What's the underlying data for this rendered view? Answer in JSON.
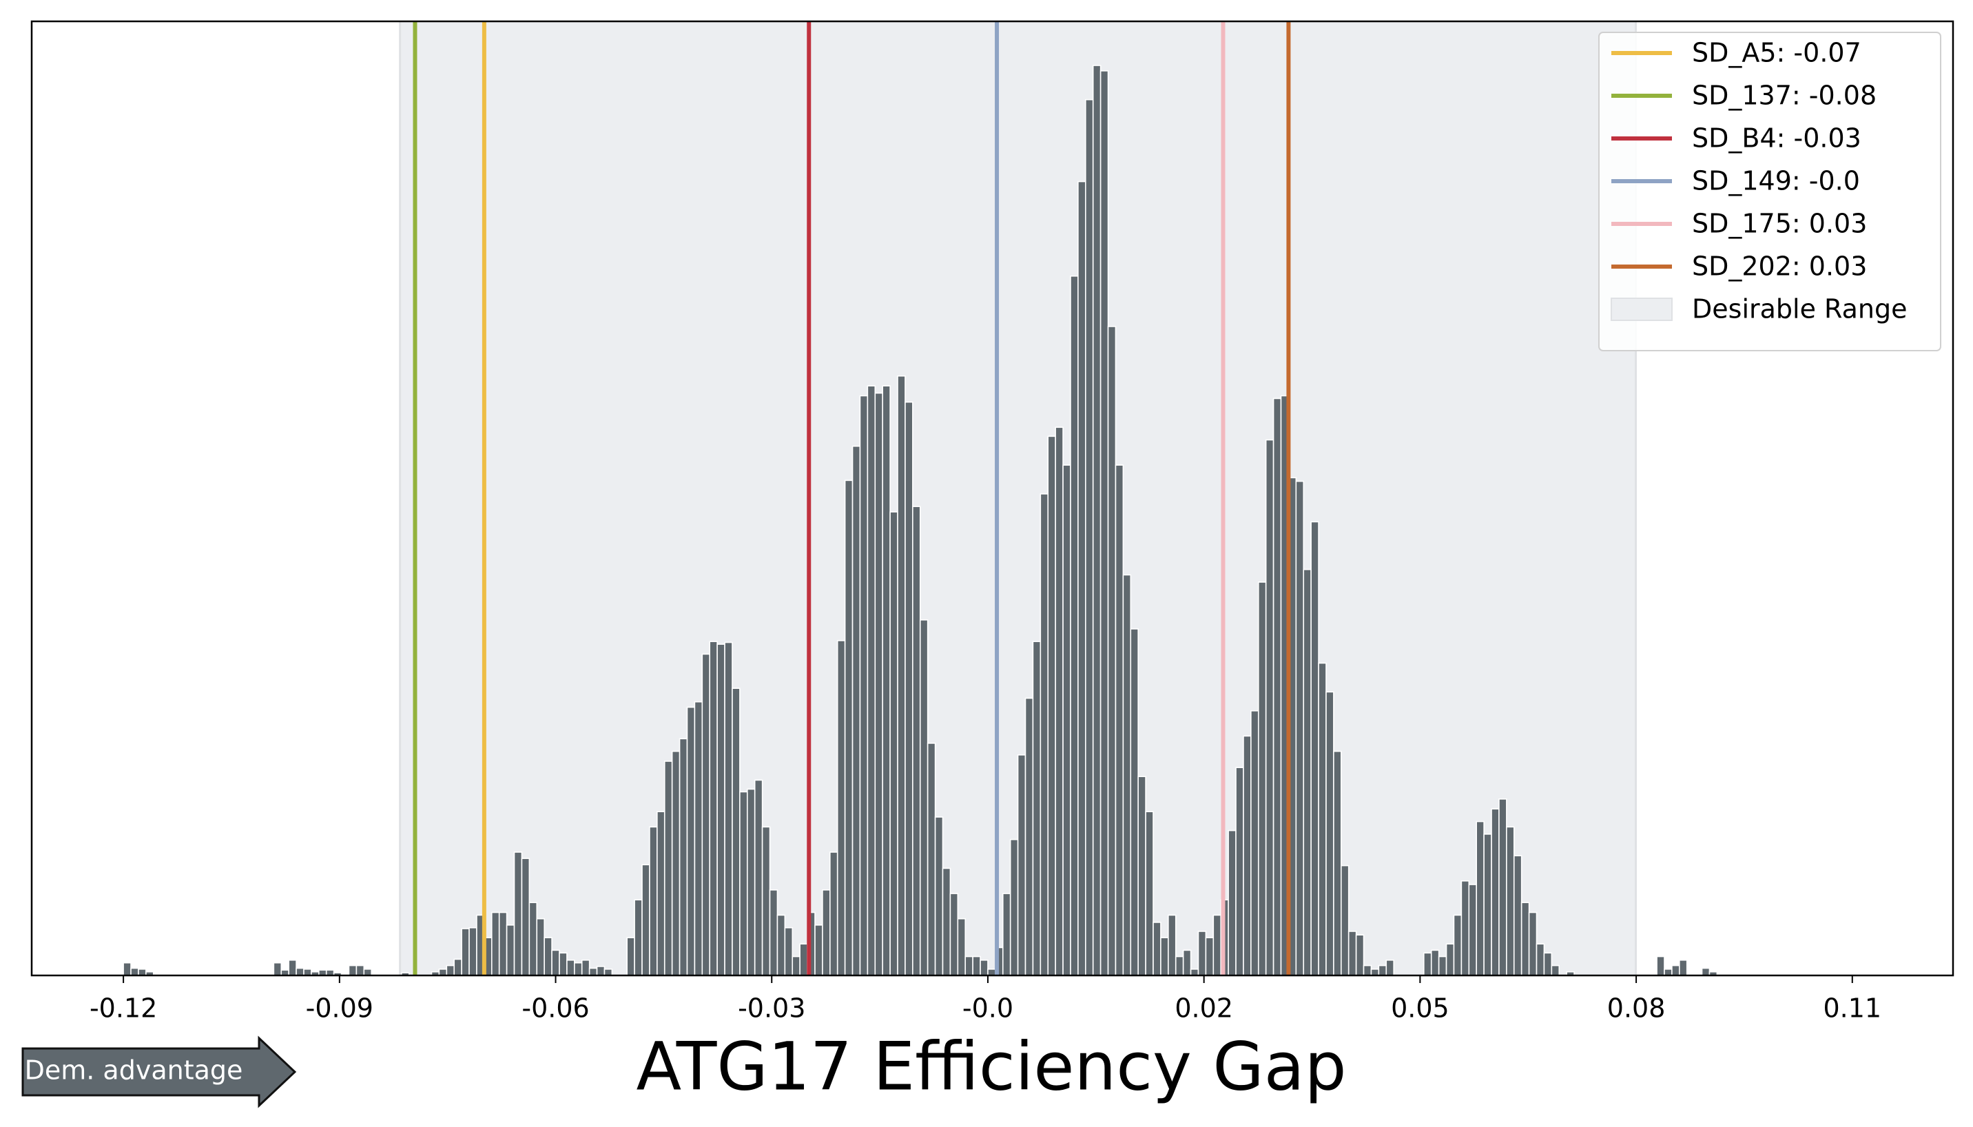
{
  "chart_data": {
    "type": "histogram",
    "xlabel": "ATG17 Efficiency Gap",
    "annotation": "Dem. advantage",
    "color": "#5f686e",
    "bins": [
      -0.121,
      -0.12,
      -0.119,
      -0.118,
      -0.117,
      -0.116,
      -0.115,
      -0.114,
      -0.113,
      -0.112,
      -0.111,
      -0.11,
      -0.109,
      -0.108,
      -0.107,
      -0.106,
      -0.105,
      -0.104,
      -0.103,
      -0.102,
      -0.101,
      -0.1,
      -0.099,
      -0.098,
      -0.097,
      -0.096,
      -0.095,
      -0.094,
      -0.093,
      -0.092,
      -0.091,
      -0.09,
      -0.089,
      -0.088,
      -0.087,
      -0.086,
      -0.085,
      -0.084,
      -0.083,
      -0.082,
      -0.081,
      -0.08,
      -0.079,
      -0.078,
      -0.077,
      -0.076,
      -0.075,
      -0.074,
      -0.073,
      -0.072,
      -0.071,
      -0.07,
      -0.069,
      -0.068,
      -0.067,
      -0.066,
      -0.065,
      -0.064,
      -0.063,
      -0.062,
      -0.061,
      -0.06,
      -0.059,
      -0.058,
      -0.057,
      -0.056,
      -0.055,
      -0.054,
      -0.053,
      -0.052,
      -0.051,
      -0.05,
      -0.049,
      -0.048,
      -0.047,
      -0.046,
      -0.045,
      -0.044,
      -0.043,
      -0.042,
      -0.041,
      -0.04,
      -0.039,
      -0.038,
      -0.037,
      -0.036,
      -0.035,
      -0.034,
      -0.033,
      -0.032,
      -0.031,
      -0.03,
      -0.029,
      -0.028,
      -0.027,
      -0.026,
      -0.025,
      -0.024,
      -0.023,
      -0.022,
      -0.021,
      -0.02,
      -0.019,
      -0.018,
      -0.017,
      -0.016,
      -0.015,
      -0.014,
      -0.013,
      -0.012,
      -0.011,
      -0.01,
      -0.009,
      -0.008,
      -0.007,
      -0.006,
      -0.005,
      -0.004,
      -0.003,
      -0.002,
      -0.001,
      0,
      0.001,
      0.002,
      0.003,
      0.004,
      0.005,
      0.006,
      0.007,
      0.008,
      0.009,
      0.01,
      0.011,
      0.012,
      0.013,
      0.014,
      0.015,
      0.016,
      0.017,
      0.018,
      0.019,
      0.02,
      0.021,
      0.022,
      0.023,
      0.024,
      0.025,
      0.026,
      0.027,
      0.028,
      0.029,
      0.03,
      0.031,
      0.032,
      0.033,
      0.034,
      0.035,
      0.036,
      0.037,
      0.038,
      0.039,
      0.04,
      0.041,
      0.042,
      0.043,
      0.044,
      0.045,
      0.046,
      0.047,
      0.048,
      0.049,
      0.05,
      0.051,
      0.052,
      0.053,
      0.054,
      0.055,
      0.056,
      0.057,
      0.058,
      0.059,
      0.06,
      0.061,
      0.062,
      0.063,
      0.064,
      0.065,
      0.066,
      0.067,
      0.068,
      0.069,
      0.07,
      0.071,
      0.072,
      0.073,
      0.074,
      0.075,
      0.076,
      0.077,
      0.078,
      0.079,
      0.08,
      0.081,
      0.082,
      0.083,
      0.084,
      0.085,
      0.086,
      0.087,
      0.088,
      0.089,
      0.09,
      0.091,
      0.092
    ],
    "values": [
      0,
      14,
      8,
      7,
      4,
      0,
      0,
      0,
      0,
      0,
      0,
      0,
      0,
      0,
      0,
      0,
      0,
      0,
      0,
      0,
      0,
      14,
      6,
      17,
      8,
      7,
      4,
      6,
      6,
      3,
      0,
      11,
      11,
      7,
      0,
      0,
      0,
      0,
      3,
      0,
      0,
      0,
      4,
      7,
      11,
      18,
      52,
      53,
      67,
      42,
      70,
      70,
      56,
      137,
      130,
      81,
      63,
      42,
      28,
      25,
      17,
      14,
      17,
      8,
      10,
      7,
      0,
      0,
      42,
      84,
      123,
      165,
      182,
      238,
      249,
      263,
      298,
      304,
      357,
      371,
      368,
      370,
      319,
      204,
      207,
      217,
      165,
      95,
      67,
      53,
      21,
      35,
      70,
      56,
      95,
      137,
      372,
      550,
      588,
      644,
      655,
      647,
      655,
      515,
      666,
      637,
      521,
      395,
      258,
      176,
      119,
      91,
      63,
      21,
      21,
      17,
      7,
      31,
      91,
      151,
      245,
      308,
      371,
      535,
      599,
      609,
      567,
      777,
      882,
      973,
      1011,
      1005,
      721,
      567,
      445,
      385,
      221,
      182,
      59,
      42,
      67,
      21,
      28,
      7,
      49,
      42,
      67,
      84,
      161,
      231,
      266,
      294,
      437,
      595,
      641,
      644,
      553,
      549,
      451,
      504,
      347,
      315,
      249,
      122,
      49,
      45,
      11,
      7,
      11,
      17,
      0,
      0,
      0,
      0,
      25,
      28,
      21,
      35,
      67,
      105,
      101,
      171,
      157,
      185,
      196,
      165,
      133,
      81,
      70,
      35,
      25,
      11,
      0,
      4,
      0,
      0,
      0,
      0,
      0,
      0,
      0,
      0,
      0,
      0,
      0,
      21,
      7,
      11,
      17,
      0,
      0,
      8,
      4
    ],
    "xlim": [
      -0.1322,
      0.1234
    ],
    "ylim": [
      0,
      1060
    ],
    "xticks": [
      -0.12,
      {
        "value": -0.09125,
        "label": "-0.09"
      },
      {
        "value": -0.0625,
        "label": "-0.06"
      },
      {
        "value": -0.03375,
        "label": "-0.03"
      },
      {
        "value": -0.005,
        "label": "-0.0"
      },
      {
        "value": 0.02375,
        "label": "0.02"
      },
      {
        "value": 0.0525,
        "label": "0.05"
      },
      {
        "value": 0.08125,
        "label": "0.08"
      },
      0.11
    ],
    "vlines": [
      {
        "name": "SD_A5: -0.07",
        "value": -0.072,
        "color": "#eebd45"
      },
      {
        "name": "SD_137: -0.08",
        "value": -0.0812,
        "color": "#93b23c"
      },
      {
        "name": "SD_B4: -0.03",
        "value": -0.0288,
        "color": "#c0313e"
      },
      {
        "name": "SD_149: -0.0",
        "value": -0.0038,
        "color": "#8ea3c4"
      },
      {
        "name": "SD_175: 0.03",
        "value": 0.0263,
        "color": "#f2b8be"
      },
      {
        "name": "SD_202: 0.03",
        "value": 0.035,
        "color": "#c46a2f"
      }
    ],
    "span": {
      "name": "Desirable Range",
      "range": [
        -0.0832,
        0.0812
      ],
      "color": "#eceef1"
    },
    "legend": "upper right"
  }
}
